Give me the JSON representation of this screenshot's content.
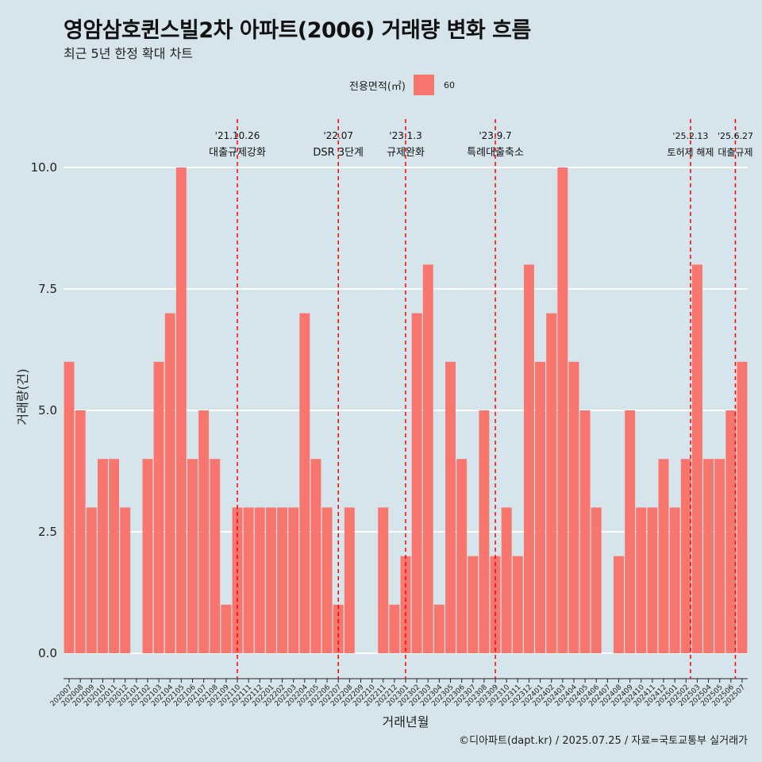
{
  "header": {
    "title": "영암삼호퀸스빌2차 아파트(2006) 거래량 변화 흐름",
    "subtitle": "최근 5년 한정 확대 차트"
  },
  "caption": "©디아파트(dapt.kr) / 2025.07.25 / 자료=국토교통부 실거래가",
  "colors": {
    "bar": "#f8766d",
    "background": "#d6e4ec",
    "grid": "#ffffff",
    "event_line": "#ff0000"
  },
  "chart_data": {
    "type": "bar",
    "xlabel": "거래년월",
    "ylabel": "거래량(건)",
    "ylim": [
      0,
      10.8
    ],
    "yticks": [
      "0.0",
      "2.5",
      "5.0",
      "7.5",
      "10.0"
    ],
    "ytick_values": [
      0,
      2.5,
      5,
      7.5,
      10
    ],
    "legend": {
      "title": "전용면적(㎡)",
      "position": "top",
      "series": [
        "60"
      ]
    },
    "categories": [
      "202007",
      "202008",
      "202009",
      "202010",
      "202011",
      "202012",
      "202101",
      "202102",
      "202103",
      "202104",
      "202105",
      "202106",
      "202107",
      "202108",
      "202109",
      "202110",
      "202111",
      "202112",
      "202201",
      "202202",
      "202203",
      "202204",
      "202205",
      "202206",
      "202207",
      "202208",
      "202209",
      "202210",
      "202211",
      "202212",
      "202301",
      "202302",
      "202303",
      "202304",
      "202305",
      "202306",
      "202307",
      "202308",
      "202309",
      "202310",
      "202311",
      "202312",
      "202401",
      "202402",
      "202403",
      "202404",
      "202405",
      "202406",
      "202407",
      "202408",
      "202409",
      "202410",
      "202411",
      "202412",
      "202501",
      "202502",
      "202503",
      "202504",
      "202505",
      "202506",
      "202507"
    ],
    "series": [
      {
        "name": "60",
        "values": [
          6,
          5,
          3,
          4,
          4,
          3,
          0,
          4,
          6,
          7,
          10,
          4,
          5,
          4,
          1,
          3,
          3,
          3,
          3,
          3,
          3,
          7,
          4,
          3,
          1,
          3,
          0,
          0,
          3,
          1,
          2,
          7,
          8,
          1,
          6,
          4,
          2,
          5,
          2,
          3,
          2,
          8,
          6,
          7,
          10,
          6,
          5,
          3,
          0,
          2,
          5,
          3,
          3,
          4,
          3,
          4,
          8,
          4,
          4,
          5,
          6
        ]
      }
    ],
    "events": [
      {
        "date": "'21.10.26",
        "label": "대출규제강화",
        "x_index": 15
      },
      {
        "date": "'22.07",
        "label": "DSR 3단계",
        "x_index": 24
      },
      {
        "date": "'23.1.3",
        "label": "규제완화",
        "x_index": 30
      },
      {
        "date": "'23.9.7",
        "label": "특례대출축소",
        "x_index": 38
      },
      {
        "date": "'25.2.13",
        "label": "토허제 해제",
        "x_index": 55.4
      },
      {
        "date": "'25.6.27",
        "label": "대출규제",
        "x_index": 59.4
      }
    ]
  }
}
